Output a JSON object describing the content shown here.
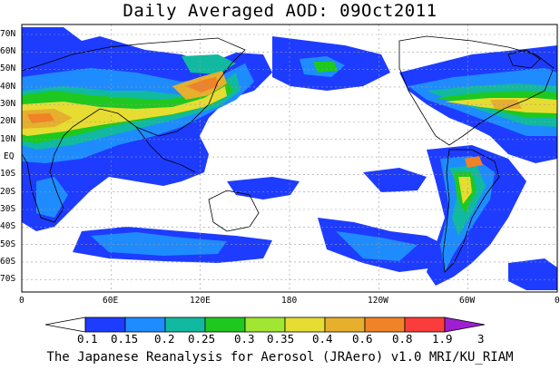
{
  "title": "Daily Averaged AOD: 09Oct2011",
  "lat_labels": [
    "70N",
    "60N",
    "50N",
    "40N",
    "30N",
    "20N",
    "10N",
    "EQ",
    "10S",
    "20S",
    "30S",
    "40S",
    "50S",
    "60S",
    "70S"
  ],
  "lon_labels": [
    "0",
    "60E",
    "120E",
    "180",
    "120W",
    "60W",
    "0"
  ],
  "colorbar": {
    "levels": [
      "0.1",
      "0.15",
      "0.2",
      "0.25",
      "0.3",
      "0.35",
      "0.4",
      "0.6",
      "0.8",
      "1.9",
      "3"
    ],
    "colors": [
      "#ffffff",
      "#1e3cff",
      "#1e8cff",
      "#11b9a0",
      "#1ec81e",
      "#a0e632",
      "#e6dc32",
      "#e6af2d",
      "#f08228",
      "#fa3c3c",
      "#a01ed2"
    ]
  },
  "credit": "The Japanese Reanalysis for Aerosol (JRAero) v1.0 MRI/KU_RIAM"
}
